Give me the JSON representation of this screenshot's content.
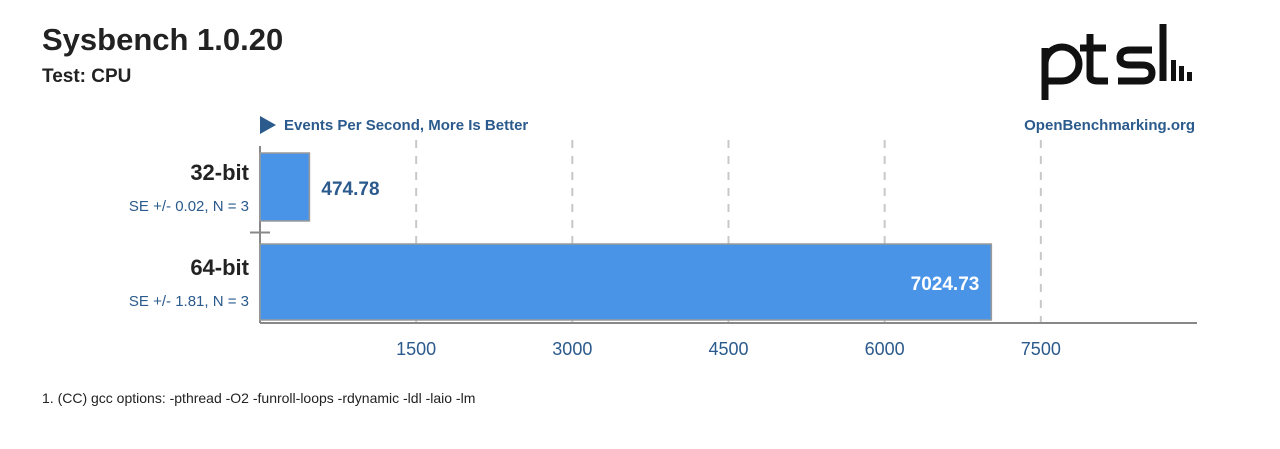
{
  "header": {
    "title": "Sysbench 1.0.20",
    "subtitle": "Test: CPU"
  },
  "legend": {
    "label": "Events Per Second, More Is Better"
  },
  "source": "OpenBenchmarking.org",
  "logo": {
    "text": "ptsl"
  },
  "footnote": "1. (CC) gcc options: -pthread -O2 -funroll-loops -rdynamic -ldl -laio -lm",
  "colors": {
    "bar": "#4a94e8",
    "bar_border": "#9a9a9a",
    "axis_text": "#2b5a8c",
    "grid": "#c8c8c8",
    "text": "#222222",
    "value_outside": "#2b5a8c",
    "value_inside": "#ffffff"
  },
  "chart_data": {
    "type": "bar",
    "orientation": "horizontal",
    "categories": [
      "32-bit",
      "64-bit"
    ],
    "values": [
      474.78,
      7024.73
    ],
    "value_labels": [
      "474.78",
      "7024.73"
    ],
    "errors": [
      "SE +/- 0.02, N = 3",
      "SE +/- 1.81, N = 3"
    ],
    "xlabel": "Events Per Second, More Is Better",
    "xlim": [
      0,
      9000
    ],
    "xticks": [
      1500,
      3000,
      4500,
      6000,
      7500
    ],
    "grid": true
  }
}
